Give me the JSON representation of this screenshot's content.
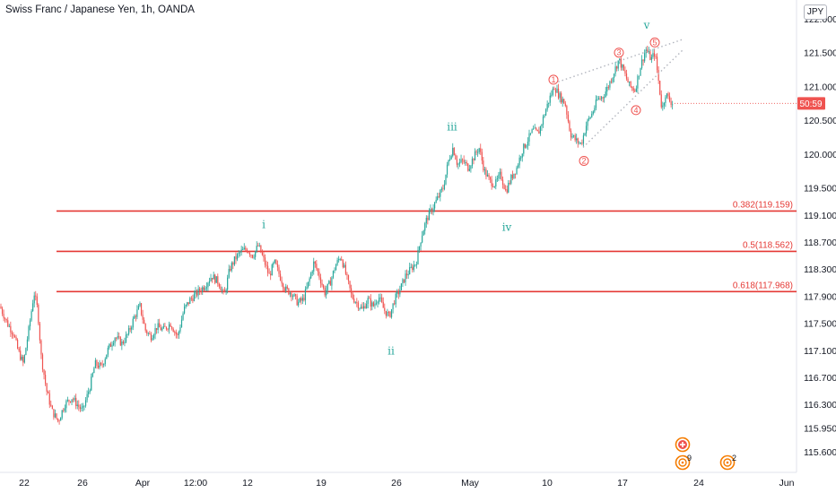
{
  "header": {
    "title": "Swiss Franc / Japanese Yen, 1h, OANDA",
    "currency": "JPY"
  },
  "price_tag": "50:59",
  "chart_data": {
    "type": "candlestick",
    "x_tick_labels": [
      "22",
      "26",
      "Apr",
      "12:00",
      "12",
      "19",
      "26",
      "May",
      "10",
      "17",
      "24",
      "Jun"
    ],
    "y_tick_labels": [
      "122.000",
      "121.500",
      "121.000",
      "120.500",
      "120.000",
      "119.500",
      "119.100",
      "118.700",
      "118.300",
      "117.900",
      "117.500",
      "117.100",
      "116.700",
      "116.300",
      "115.950",
      "115.600"
    ],
    "ylim": [
      115.5,
      122.1
    ],
    "path": [
      [
        0,
        117.75
      ],
      [
        8,
        117.5
      ],
      [
        15,
        117.35
      ],
      [
        20,
        117.1
      ],
      [
        26,
        116.9
      ],
      [
        32,
        117.4
      ],
      [
        38,
        117.95
      ],
      [
        42,
        117.7
      ],
      [
        46,
        117.0
      ],
      [
        52,
        116.5
      ],
      [
        58,
        116.2
      ],
      [
        65,
        116.05
      ],
      [
        72,
        116.3
      ],
      [
        80,
        116.4
      ],
      [
        86,
        116.3
      ],
      [
        92,
        116.2
      ],
      [
        100,
        116.55
      ],
      [
        106,
        116.9
      ],
      [
        113,
        116.85
      ],
      [
        120,
        117.1
      ],
      [
        128,
        117.3
      ],
      [
        136,
        117.2
      ],
      [
        143,
        117.35
      ],
      [
        150,
        117.6
      ],
      [
        156,
        117.75
      ],
      [
        162,
        117.4
      ],
      [
        168,
        117.3
      ],
      [
        175,
        117.45
      ],
      [
        182,
        117.4
      ],
      [
        190,
        117.5
      ],
      [
        198,
        117.3
      ],
      [
        205,
        117.7
      ],
      [
        212,
        117.85
      ],
      [
        220,
        117.95
      ],
      [
        228,
        118.05
      ],
      [
        236,
        118.2
      ],
      [
        244,
        118.1
      ],
      [
        250,
        117.9
      ],
      [
        256,
        118.3
      ],
      [
        262,
        118.45
      ],
      [
        268,
        118.55
      ],
      [
        275,
        118.6
      ],
      [
        282,
        118.5
      ],
      [
        288,
        118.65
      ],
      [
        295,
        118.4
      ],
      [
        300,
        118.2
      ],
      [
        306,
        118.4
      ],
      [
        312,
        118.2
      ],
      [
        318,
        118.0
      ],
      [
        325,
        117.95
      ],
      [
        332,
        117.8
      ],
      [
        338,
        117.85
      ],
      [
        344,
        118.1
      ],
      [
        350,
        118.4
      ],
      [
        356,
        118.2
      ],
      [
        362,
        117.95
      ],
      [
        368,
        118.1
      ],
      [
        374,
        118.35
      ],
      [
        380,
        118.5
      ],
      [
        386,
        118.2
      ],
      [
        392,
        117.9
      ],
      [
        398,
        117.8
      ],
      [
        404,
        117.7
      ],
      [
        410,
        117.85
      ],
      [
        416,
        117.75
      ],
      [
        422,
        117.9
      ],
      [
        428,
        117.7
      ],
      [
        434,
        117.6
      ],
      [
        440,
        117.85
      ],
      [
        446,
        118.0
      ],
      [
        452,
        118.2
      ],
      [
        458,
        118.3
      ],
      [
        464,
        118.4
      ],
      [
        470,
        118.8
      ],
      [
        476,
        119.05
      ],
      [
        482,
        119.2
      ],
      [
        488,
        119.35
      ],
      [
        494,
        119.5
      ],
      [
        500,
        119.9
      ],
      [
        505,
        120.1
      ],
      [
        510,
        119.85
      ],
      [
        516,
        119.9
      ],
      [
        522,
        119.8
      ],
      [
        528,
        119.95
      ],
      [
        534,
        120.1
      ],
      [
        540,
        119.75
      ],
      [
        546,
        119.6
      ],
      [
        552,
        119.55
      ],
      [
        558,
        119.7
      ],
      [
        564,
        119.45
      ],
      [
        570,
        119.65
      ],
      [
        576,
        119.8
      ],
      [
        582,
        120.05
      ],
      [
        588,
        120.2
      ],
      [
        594,
        120.35
      ],
      [
        600,
        120.3
      ],
      [
        606,
        120.55
      ],
      [
        612,
        120.8
      ],
      [
        618,
        121.0
      ],
      [
        624,
        120.85
      ],
      [
        630,
        120.75
      ],
      [
        636,
        120.3
      ],
      [
        642,
        120.2
      ],
      [
        648,
        120.15
      ],
      [
        654,
        120.45
      ],
      [
        660,
        120.6
      ],
      [
        666,
        120.8
      ],
      [
        672,
        120.85
      ],
      [
        678,
        121.0
      ],
      [
        684,
        121.2
      ],
      [
        690,
        121.4
      ],
      [
        696,
        121.2
      ],
      [
        702,
        121.0
      ],
      [
        708,
        120.95
      ],
      [
        714,
        121.3
      ],
      [
        720,
        121.55
      ],
      [
        726,
        121.4
      ],
      [
        730,
        121.5
      ],
      [
        734,
        121.1
      ],
      [
        738,
        120.65
      ],
      [
        742,
        120.9
      ],
      [
        746,
        120.8
      ],
      [
        750,
        120.75
      ]
    ],
    "fib_levels": [
      {
        "label": "0.382(119.159)",
        "value": 119.159
      },
      {
        "label": "0.5(118.562)",
        "value": 118.562
      },
      {
        "label": "0.618(117.968)",
        "value": 117.968
      }
    ],
    "waves_green": [
      {
        "label": "i",
        "value": 118.85
      },
      {
        "label": "ii",
        "value": 117.25
      },
      {
        "label": "iii",
        "value": 120.3
      },
      {
        "label": "iv",
        "value": 119.05
      },
      {
        "label": "v",
        "value": 121.8
      }
    ],
    "waves_red": [
      {
        "label": "1",
        "value": 121.1
      },
      {
        "label": "2",
        "value": 119.9
      },
      {
        "label": "3",
        "value": 121.5
      },
      {
        "label": "4",
        "value": 120.65
      },
      {
        "label": "5",
        "value": 121.65
      }
    ],
    "event_badges": [
      {
        "type": "plus",
        "count": ""
      },
      {
        "type": "dividend",
        "count": "9"
      },
      {
        "type": "dividend",
        "count": "2"
      }
    ],
    "colors": {
      "up": "#26a69a",
      "down": "#ef5350",
      "fib_line": "#e53935",
      "price_tag": "#ef5350",
      "badge": "#f57c00"
    }
  }
}
